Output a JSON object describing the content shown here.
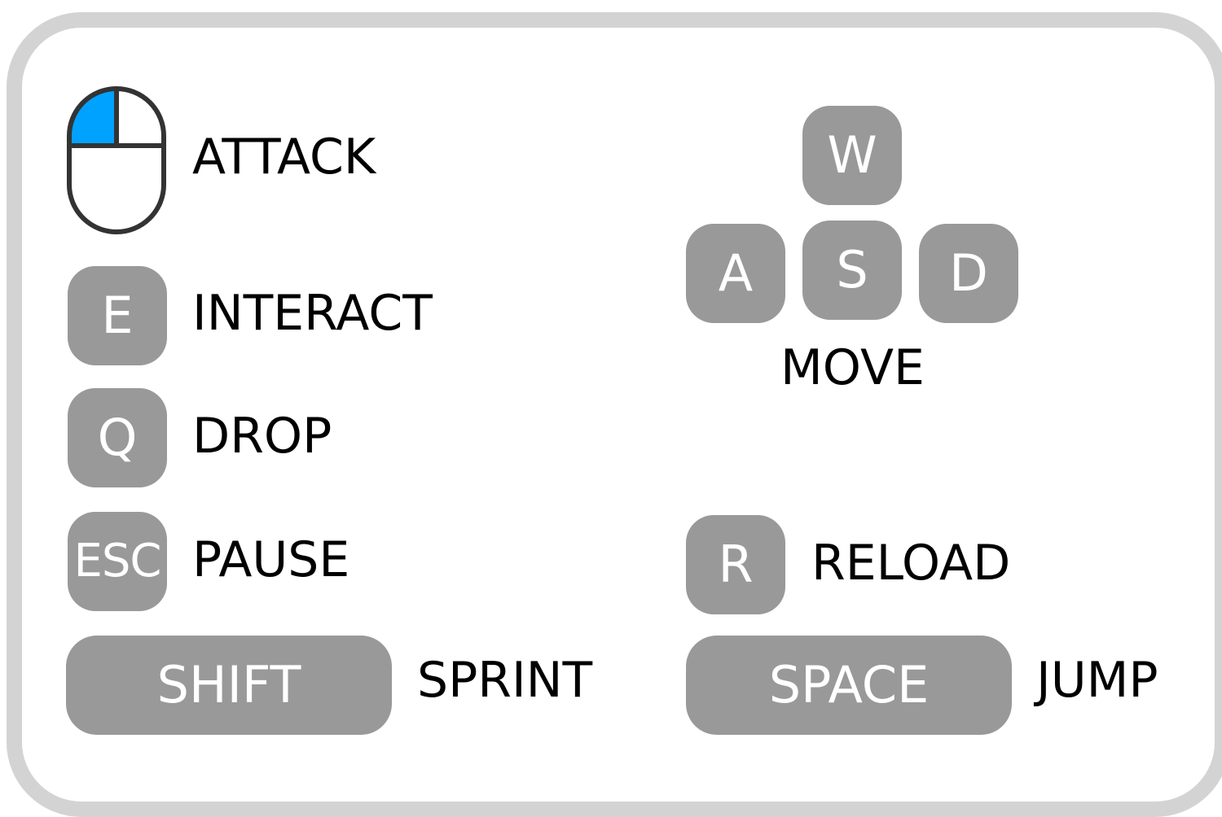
{
  "controls": {
    "attack": {
      "icon": "mouse-left-click-icon",
      "label": "ATTACK",
      "highlight_color": "#00a2ff"
    },
    "interact": {
      "key": "E",
      "label": "INTERACT"
    },
    "drop": {
      "key": "Q",
      "label": "DROP"
    },
    "pause": {
      "key": "ESC",
      "label": "PAUSE"
    },
    "sprint": {
      "key": "SHIFT",
      "label": "SPRINT"
    },
    "move": {
      "keys": {
        "up": "W",
        "left": "A",
        "down": "S",
        "right": "D"
      },
      "label": "MOVE"
    },
    "reload": {
      "key": "R",
      "label": "RELOAD"
    },
    "jump": {
      "key": "SPACE",
      "label": "JUMP"
    }
  },
  "colors": {
    "key_background": "#999999",
    "key_text": "#ffffff",
    "label_text": "#000000",
    "panel_border": "#d3d3d3",
    "panel_background": "#ffffff"
  }
}
